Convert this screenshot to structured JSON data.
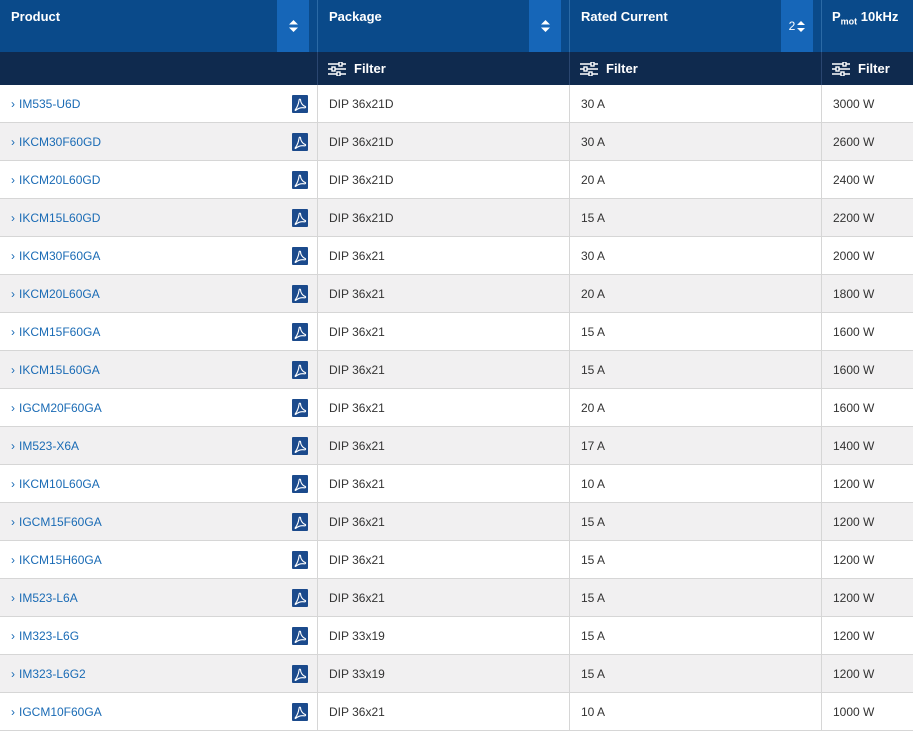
{
  "columns": [
    {
      "label": "Product",
      "sort_number": ""
    },
    {
      "label": "Package",
      "sort_number": ""
    },
    {
      "label": "Rated Current",
      "sort_number": "2"
    },
    {
      "label_main": "P",
      "label_sub": "mot",
      "label_rest": " 10kHz"
    }
  ],
  "filter_label": "Filter",
  "rows": [
    {
      "product": "IM535-U6D",
      "package": "DIP 36x21D",
      "current": "30 A",
      "power": "3000 W"
    },
    {
      "product": "IKCM30F60GD",
      "package": "DIP 36x21D",
      "current": "30 A",
      "power": "2600 W"
    },
    {
      "product": "IKCM20L60GD",
      "package": "DIP 36x21D",
      "current": "20 A",
      "power": "2400 W"
    },
    {
      "product": "IKCM15L60GD",
      "package": "DIP 36x21D",
      "current": "15 A",
      "power": "2200 W"
    },
    {
      "product": "IKCM30F60GA",
      "package": "DIP 36x21",
      "current": "30 A",
      "power": "2000 W"
    },
    {
      "product": "IKCM20L60GA",
      "package": "DIP 36x21",
      "current": "20 A",
      "power": "1800 W"
    },
    {
      "product": "IKCM15F60GA",
      "package": "DIP 36x21",
      "current": "15 A",
      "power": "1600 W"
    },
    {
      "product": "IKCM15L60GA",
      "package": "DIP 36x21",
      "current": "15 A",
      "power": "1600 W"
    },
    {
      "product": "IGCM20F60GA",
      "package": "DIP 36x21",
      "current": "20 A",
      "power": "1600 W"
    },
    {
      "product": "IM523-X6A",
      "package": "DIP 36x21",
      "current": "17 A",
      "power": "1400 W"
    },
    {
      "product": "IKCM10L60GA",
      "package": "DIP 36x21",
      "current": "10 A",
      "power": "1200 W"
    },
    {
      "product": "IGCM15F60GA",
      "package": "DIP 36x21",
      "current": "15 A",
      "power": "1200 W"
    },
    {
      "product": "IKCM15H60GA",
      "package": "DIP 36x21",
      "current": "15 A",
      "power": "1200 W"
    },
    {
      "product": "IM523-L6A",
      "package": "DIP 36x21",
      "current": "15 A",
      "power": "1200 W"
    },
    {
      "product": "IM323-L6G",
      "package": "DIP 33x19",
      "current": "15 A",
      "power": "1200 W"
    },
    {
      "product": "IM323-L6G2",
      "package": "DIP 33x19",
      "current": "15 A",
      "power": "1200 W"
    },
    {
      "product": "IGCM10F60GA",
      "package": "DIP 36x21",
      "current": "10 A",
      "power": "1000 W"
    }
  ],
  "icons": {
    "sort": "sort-updown-icon",
    "filter": "filter-sliders-icon",
    "pdf": "pdf-datasheet-icon",
    "chevron": "chevron-right-icon"
  },
  "colors": {
    "header_bg": "#0a4a8a",
    "filter_bg": "#0f2a4e",
    "sort_btn": "#1666b8",
    "link": "#1a6bb5",
    "row_alt": "#f1f0f1",
    "pdf_icon": "#1b4a8c"
  }
}
